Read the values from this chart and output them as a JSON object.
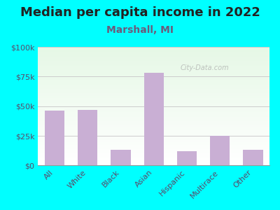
{
  "title": "Median per capita income in 2022",
  "subtitle": "Marshall, MI",
  "categories": [
    "All",
    "White",
    "Black",
    "Asian",
    "Hispanic",
    "Multirace",
    "Other"
  ],
  "values": [
    46000,
    47000,
    13000,
    78000,
    12000,
    25000,
    13000
  ],
  "bar_color": "#c9afd4",
  "title_fontsize": 13,
  "subtitle_fontsize": 10,
  "subtitle_color": "#6b5b7b",
  "tick_label_color": "#5a4a6a",
  "background_color": "#00FFFF",
  "ylim": [
    0,
    100000
  ],
  "yticks": [
    0,
    25000,
    50000,
    75000,
    100000
  ],
  "ytick_labels": [
    "$0",
    "$25k",
    "$50k",
    "$75k",
    "$100k"
  ],
  "watermark": "City-Data.com"
}
